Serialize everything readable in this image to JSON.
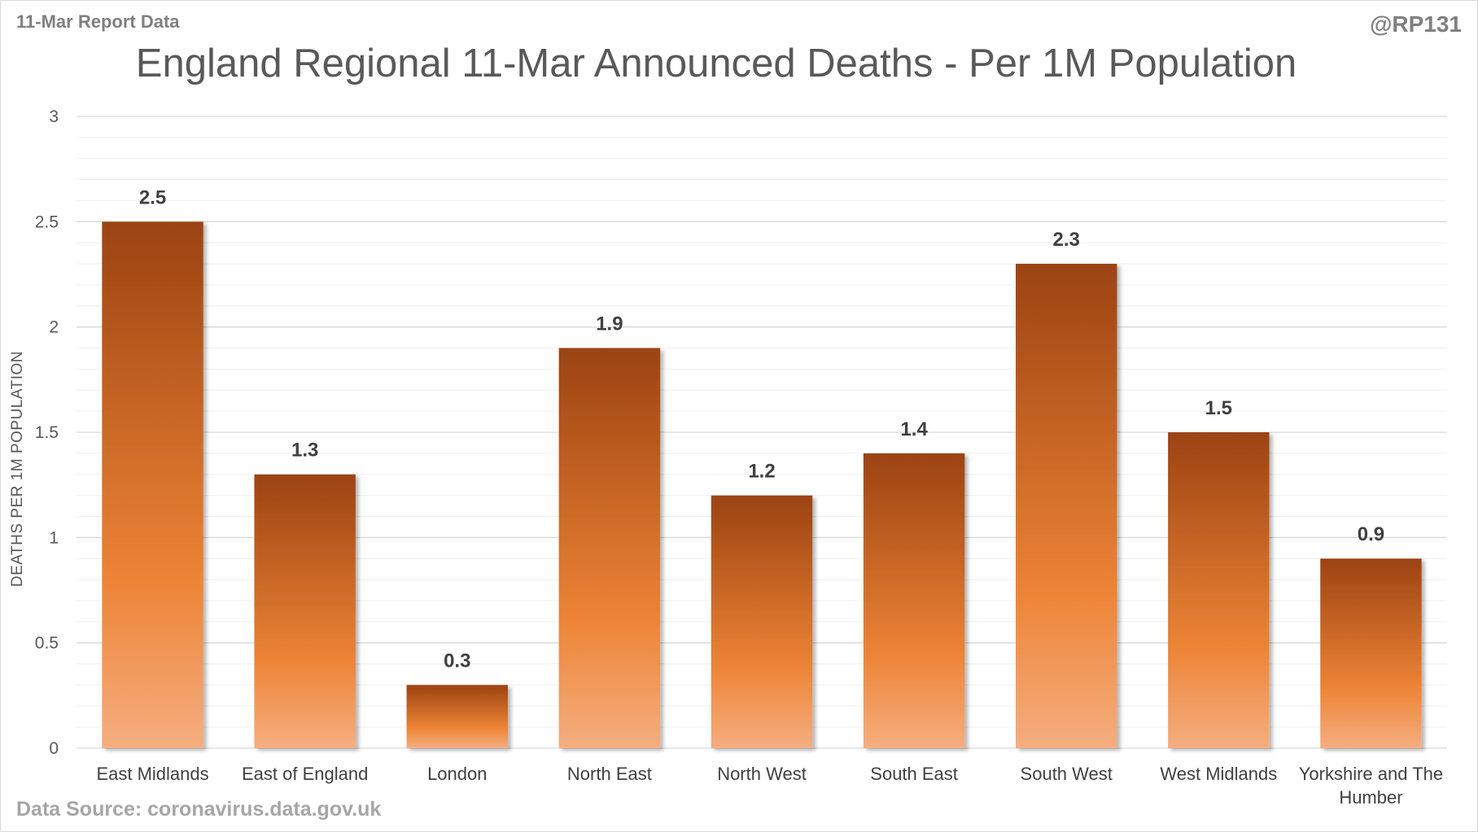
{
  "header": {
    "report_label": "11-Mar Report Data",
    "handle": "@RP131"
  },
  "footer": {
    "source": "Data Source: coronavirus.data.gov.uk"
  },
  "colors": {
    "bar_top": "#9c4312",
    "bar_mid": "#ed8436",
    "bar_bottom": "#f5ae80",
    "gridline": "#d9d9d9",
    "minor_gridline": "#efefef"
  },
  "chart_data": {
    "type": "bar",
    "title": "England Regional 11-Mar Announced Deaths - Per 1M Population",
    "xlabel": "",
    "ylabel": "DEATHS PER 1M POPULATION",
    "categories": [
      "East Midlands",
      "East of England",
      "London",
      "North East",
      "North West",
      "South East",
      "South West",
      "West Midlands",
      "Yorkshire and The Humber"
    ],
    "values": [
      2.5,
      1.3,
      0.3,
      1.9,
      1.2,
      1.4,
      2.3,
      1.5,
      0.9
    ],
    "value_labels": [
      "2.5",
      "1.3",
      "0.3",
      "1.9",
      "1.2",
      "1.4",
      "2.3",
      "1.5",
      "0.9"
    ],
    "ylim": [
      0,
      3
    ],
    "yticks": [
      "0",
      "0.5",
      "1",
      "1.5",
      "2",
      "2.5",
      "3"
    ],
    "yticks_values": [
      0,
      0.5,
      1,
      1.5,
      2,
      2.5,
      3
    ],
    "grid": true,
    "legend": "none"
  }
}
